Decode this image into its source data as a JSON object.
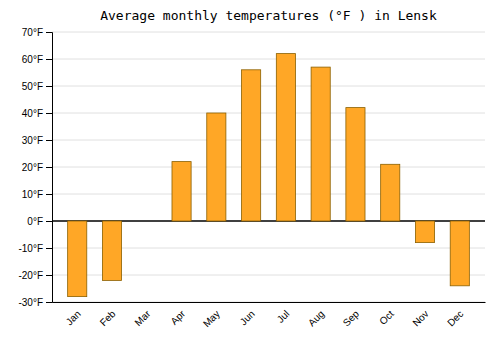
{
  "chart_data": {
    "type": "bar",
    "title": "Average monthly temperatures (°F ) in Lensk",
    "categories": [
      "Jan",
      "Feb",
      "Mar",
      "Apr",
      "May",
      "Jun",
      "Jul",
      "Aug",
      "Sep",
      "Oct",
      "Nov",
      "Dec"
    ],
    "values": [
      -28,
      -22,
      0,
      22,
      40,
      56,
      62,
      57,
      42,
      21,
      -8,
      -24
    ],
    "color": "#FFA726",
    "ylim": [
      -30,
      70
    ],
    "yticks": [
      {
        "value": -30,
        "label": "-30°F"
      },
      {
        "value": -20,
        "label": "-20°F"
      },
      {
        "value": -10,
        "label": "-10°F"
      },
      {
        "value": 0,
        "label": "0°F"
      },
      {
        "value": 10,
        "label": "10°F"
      },
      {
        "value": 20,
        "label": "20°F"
      },
      {
        "value": 30,
        "label": "30°F"
      },
      {
        "value": 40,
        "label": "40°F"
      },
      {
        "value": 50,
        "label": "50°F"
      },
      {
        "value": 60,
        "label": "60°F"
      },
      {
        "value": 70,
        "label": "70°F"
      }
    ],
    "grid": true
  }
}
